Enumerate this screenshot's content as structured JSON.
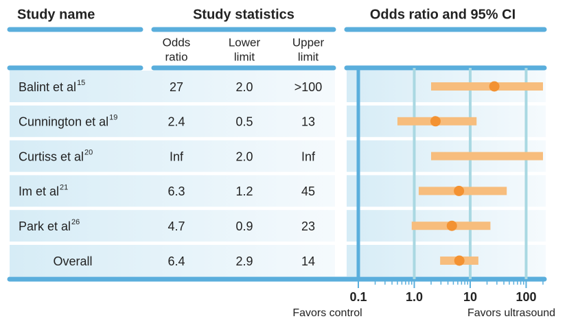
{
  "chart_data": {
    "type": "forest",
    "column_headers": [
      "Study name",
      "Study statistics",
      "Odds ratio and 95% CI"
    ],
    "subheaders": [
      [
        "Odds",
        "ratio"
      ],
      [
        "Lower",
        "limit"
      ],
      [
        "Upper",
        "limit"
      ]
    ],
    "categories": [
      "Balint et al",
      "Cunnington et al",
      "Curtiss et al",
      "Im et al",
      "Park et al",
      "Overall"
    ],
    "superscripts": [
      "15",
      "19",
      "20",
      "21",
      "26",
      null
    ],
    "odds_ratio": {
      "values": [
        27,
        2.4,
        null,
        6.3,
        4.7,
        6.4
      ],
      "value_labels": [
        "27",
        "2.4",
        "Inf",
        "6.3",
        "4.7",
        "6.4"
      ],
      "color": "#f39232"
    },
    "lower_limit": {
      "values": [
        2.0,
        0.5,
        2.0,
        1.2,
        0.9,
        2.9
      ],
      "value_labels": [
        "2.0",
        "0.5",
        "2.0",
        "1.2",
        "0.9",
        "2.9"
      ]
    },
    "upper_limit": {
      "values": [
        null,
        13,
        null,
        45,
        23,
        14
      ],
      "value_labels": [
        ">100",
        "13",
        "Inf",
        "45",
        "23",
        "14"
      ]
    },
    "ci_color": "#f7bd7d",
    "x_log": true,
    "xlim": [
      0.1,
      200
    ],
    "xticks": [
      0.1,
      {
        "value": 1,
        "label": "1.0"
      },
      10,
      100
    ],
    "xminorticks": [
      0.2,
      0.3,
      0.4,
      0.5,
      0.6,
      0.7,
      0.8,
      0.9,
      2,
      3,
      4,
      5,
      6,
      7,
      8,
      9,
      20,
      30,
      40,
      50,
      60,
      70,
      80,
      90,
      200
    ],
    "x_labels": [
      "Favors control",
      "Favors ultrasound"
    ],
    "grid": true
  }
}
